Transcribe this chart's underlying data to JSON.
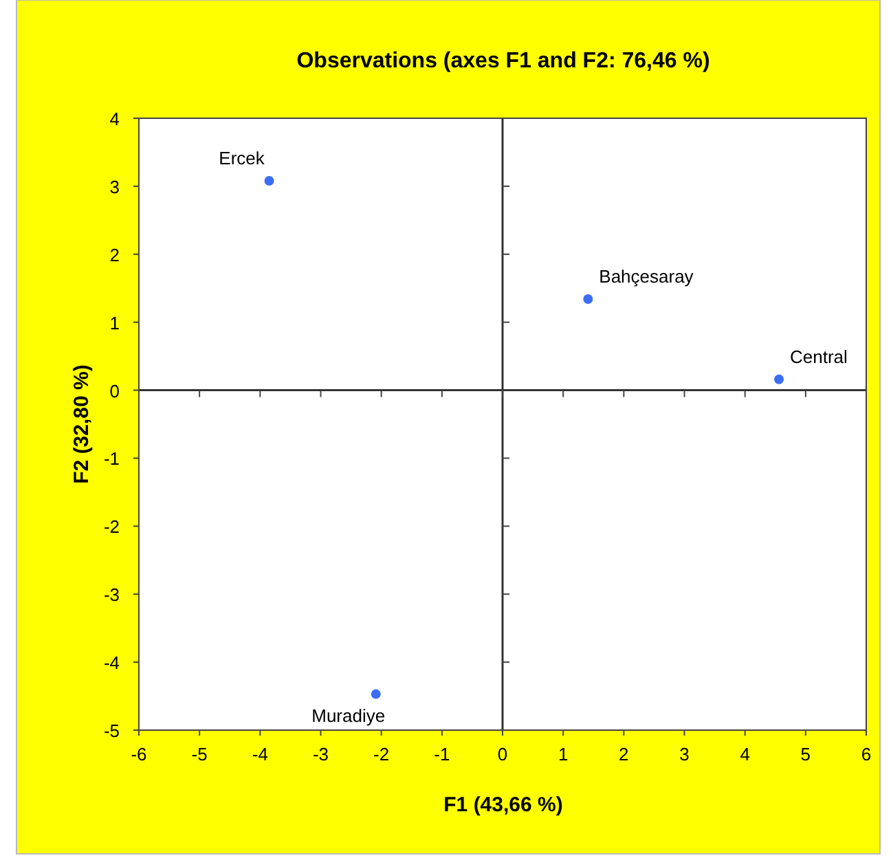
{
  "chart_data": {
    "type": "scatter",
    "title": "Observations (axes F1 and F2: 76,46 %)",
    "xlabel": "F1 (43,66 %)",
    "ylabel": "F2 (32,80 %)",
    "x": [
      -3.85,
      1.41,
      4.56,
      -2.09
    ],
    "values": [
      3.08,
      1.34,
      0.16,
      -4.47
    ],
    "color": "#3b6ef5",
    "marker": "circle",
    "grid": false,
    "xlim": [
      -6,
      6
    ],
    "xticks": [
      -6,
      -5,
      -4,
      -3,
      -2,
      -1,
      0,
      1,
      2,
      3,
      4,
      5,
      6
    ],
    "ylim": [
      -5,
      4
    ],
    "yticks": [
      -5,
      -4,
      -3,
      -2,
      -1,
      0,
      1,
      2,
      3,
      4
    ],
    "ref_lines": [
      {
        "axis": "x",
        "value": 0
      },
      {
        "axis": "y",
        "value": 0
      }
    ],
    "annotations": [
      {
        "text": "Ercek",
        "x": -3.85,
        "y": 3.08
      },
      {
        "text": "Bahçesaray",
        "x": 1.41,
        "y": 1.34
      },
      {
        "text": "Central",
        "x": 4.56,
        "y": 0.16
      },
      {
        "text": "Muradiye",
        "x": -2.09,
        "y": -4.47
      }
    ]
  }
}
